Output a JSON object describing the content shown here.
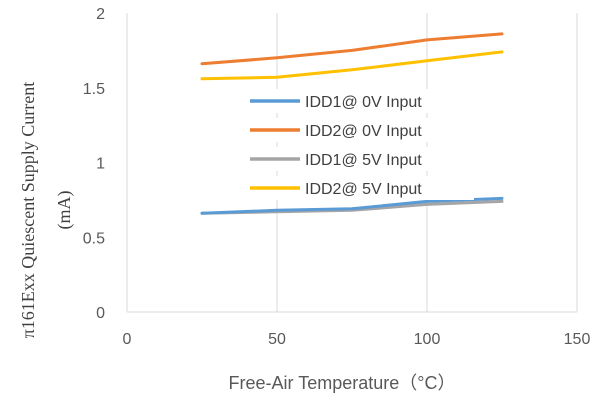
{
  "chart_data": {
    "type": "line",
    "xlabel": "Free-Air Temperature（°C）",
    "ylabel_line1": "π161Exx Quiescent Supply Current",
    "ylabel_line2": "(mA)",
    "xlim": [
      0,
      150
    ],
    "ylim": [
      0,
      2
    ],
    "xticks": [
      0,
      50,
      100,
      150
    ],
    "yticks": [
      0,
      0.5,
      1,
      1.5,
      2
    ],
    "xtick_labels": [
      "0",
      "50",
      "100",
      "150"
    ],
    "ytick_labels": [
      "0",
      "0.5",
      "1",
      "1.5",
      "2"
    ],
    "grid": "vertical",
    "legend_position": "center",
    "series": [
      {
        "name": "IDD1@ 0V Input",
        "color": "#5B9BD5",
        "x": [
          25,
          50,
          75,
          100,
          125
        ],
        "y": [
          0.66,
          0.68,
          0.69,
          0.74,
          0.76
        ]
      },
      {
        "name": "IDD2@ 0V Input",
        "color": "#ED7D31",
        "x": [
          25,
          50,
          75,
          100,
          125
        ],
        "y": [
          1.66,
          1.7,
          1.75,
          1.82,
          1.86
        ]
      },
      {
        "name": "IDD1@ 5V Input",
        "color": "#A5A5A5",
        "x": [
          25,
          50,
          75,
          100,
          125
        ],
        "y": [
          0.66,
          0.67,
          0.68,
          0.72,
          0.74
        ]
      },
      {
        "name": "IDD2@ 5V Input",
        "color": "#FFC000",
        "x": [
          25,
          50,
          75,
          100,
          125
        ],
        "y": [
          1.56,
          1.57,
          1.62,
          1.68,
          1.74
        ]
      }
    ]
  }
}
